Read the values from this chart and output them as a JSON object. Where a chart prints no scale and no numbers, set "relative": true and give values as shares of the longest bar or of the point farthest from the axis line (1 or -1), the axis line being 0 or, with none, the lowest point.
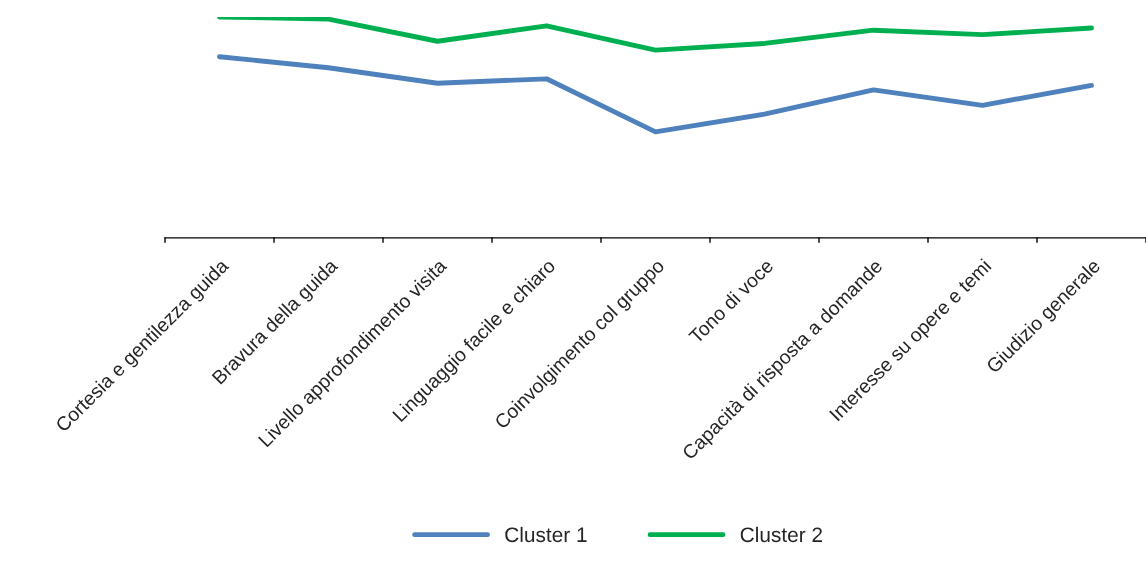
{
  "chart_data": {
    "type": "line",
    "relative": true,
    "categories": [
      "Cortesia e gentilezza guida",
      "Bravura della guida",
      "Livello approfondimento visita",
      "Linguaggio facile e chiaro",
      "Coinvolgimento col gruppo",
      "Tono di voce",
      "Capacità di risposta a domande",
      "Interesse su opere e temi",
      "Giudizio generale"
    ],
    "series": [
      {
        "name": "Cluster 1",
        "color": "#4f81bd",
        "values": [
          0.82,
          0.77,
          0.7,
          0.72,
          0.48,
          0.56,
          0.67,
          0.6,
          0.69
        ]
      },
      {
        "name": "Cluster 2",
        "color": "#00b050",
        "values": [
          1.0,
          0.99,
          0.89,
          0.96,
          0.85,
          0.88,
          0.94,
          0.92,
          0.95
        ]
      }
    ],
    "legend": "bottom",
    "grid": false,
    "marker": "none",
    "line_style": "solid"
  }
}
